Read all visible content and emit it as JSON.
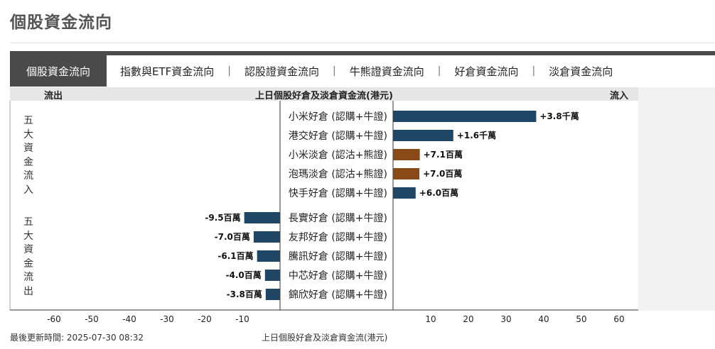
{
  "page": {
    "title": "個股資金流向"
  },
  "tabs": [
    {
      "label": "個股資金流向",
      "active": true
    },
    {
      "label": "指數與ETF資金流向",
      "active": false
    },
    {
      "label": "認股證資金流向",
      "active": false
    },
    {
      "label": "牛熊證資金流向",
      "active": false
    },
    {
      "label": "好倉資金流向",
      "active": false
    },
    {
      "label": "淡倉資金流向",
      "active": false
    }
  ],
  "tab_separator": "|",
  "header": {
    "outflow_label": "流出",
    "center_title": "上日個股好倉及淡倉資金流(港元)",
    "inflow_label": "流入"
  },
  "side_labels": {
    "top5_inflow": "五大資金流入",
    "top5_outflow": "五大資金流出"
  },
  "colors": {
    "bull": "#1f4765",
    "bear": "#8a4a18",
    "header_bg": "#e6e6e6",
    "tab_active_bg": "#4a4a4a"
  },
  "chart_data": {
    "type": "bar",
    "orientation": "horizontal",
    "title": "上日個股好倉及淡倉資金流(港元)",
    "xlim": [
      -60,
      60
    ],
    "xticks": [
      -60,
      -50,
      -40,
      -30,
      -20,
      -10,
      10,
      20,
      30,
      40,
      50,
      60
    ],
    "inflow": [
      {
        "category": "小米好倉 (認購+牛證)",
        "value": 38,
        "label": "+3.8千萬",
        "kind": "bull"
      },
      {
        "category": "港交好倉 (認購+牛證)",
        "value": 16,
        "label": "+1.6千萬",
        "kind": "bull"
      },
      {
        "category": "小米淡倉 (認沽+熊證)",
        "value": 7.1,
        "label": "+7.1百萬",
        "kind": "bear"
      },
      {
        "category": "泡瑪淡倉 (認沽+熊證)",
        "value": 7.0,
        "label": "+7.0百萬",
        "kind": "bear"
      },
      {
        "category": "快手好倉 (認購+牛證)",
        "value": 6.0,
        "label": "+6.0百萬",
        "kind": "bull"
      }
    ],
    "outflow": [
      {
        "category": "長實好倉 (認購+牛證)",
        "value": -9.5,
        "label": "-9.5百萬",
        "kind": "bull"
      },
      {
        "category": "友邦好倉 (認購+牛證)",
        "value": -7.0,
        "label": "-7.0百萬",
        "kind": "bull"
      },
      {
        "category": "騰訊好倉 (認購+牛證)",
        "value": -6.1,
        "label": "-6.1百萬",
        "kind": "bull"
      },
      {
        "category": "中芯好倉 (認購+牛證)",
        "value": -4.0,
        "label": "-4.0百萬",
        "kind": "bull"
      },
      {
        "category": "錦欣好倉 (認購+牛證)",
        "value": -3.8,
        "label": "-3.8百萬",
        "kind": "bull"
      }
    ],
    "grid": false
  },
  "footer": {
    "last_updated": "最後更新時間: 2025-07-30 08:32",
    "caption": "上日個股好倉及淡倉資金流(港元)"
  }
}
